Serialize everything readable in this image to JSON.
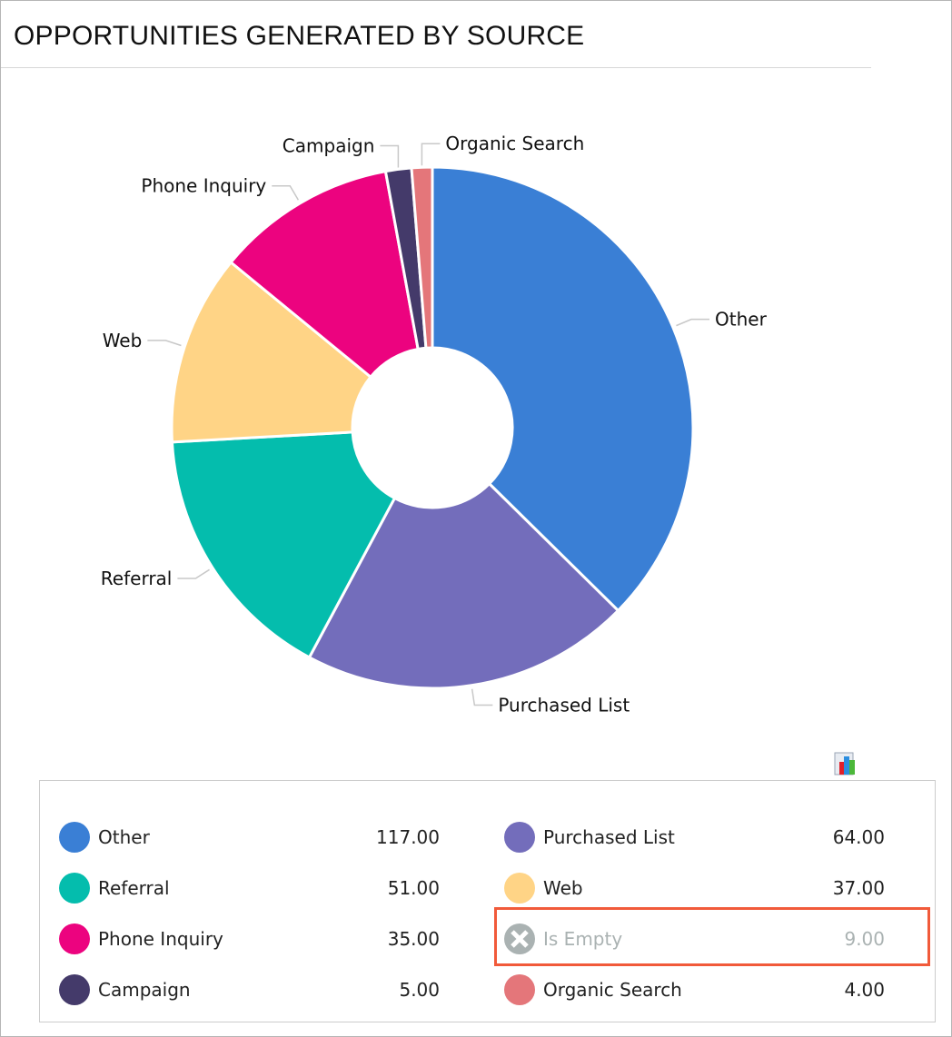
{
  "title": "OPPORTUNITIES GENERATED BY SOURCE",
  "chart_data": {
    "type": "pie",
    "variant": "donut",
    "title": "OPPORTUNITIES GENERATED BY SOURCE",
    "slices": [
      {
        "label": "Other",
        "value": 117,
        "color": "#3a7fd5"
      },
      {
        "label": "Purchased List",
        "value": 64,
        "color": "#736dbb"
      },
      {
        "label": "Referral",
        "value": 51,
        "color": "#04bdad"
      },
      {
        "label": "Web",
        "value": 37,
        "color": "#ffd486"
      },
      {
        "label": "Phone Inquiry",
        "value": 35,
        "color": "#ec037f"
      },
      {
        "label": "Campaign",
        "value": 5,
        "color": "#443a6a"
      },
      {
        "label": "Organic Search",
        "value": 4,
        "color": "#e4767a"
      }
    ],
    "excluded": [
      {
        "label": "Is Empty",
        "value": 9,
        "color": "#aab2b2"
      }
    ]
  },
  "legend": [
    {
      "label": "Other",
      "value": "117.00",
      "color": "#3a7fd5"
    },
    {
      "label": "Purchased List",
      "value": "64.00",
      "color": "#736dbb"
    },
    {
      "label": "Referral",
      "value": "51.00",
      "color": "#04bdad"
    },
    {
      "label": "Web",
      "value": "37.00",
      "color": "#ffd486"
    },
    {
      "label": "Phone Inquiry",
      "value": "35.00",
      "color": "#ec037f"
    },
    {
      "label": "Is Empty",
      "value": "9.00",
      "color": "#aab2b2",
      "disabled": true
    },
    {
      "label": "Campaign",
      "value": "5.00",
      "color": "#443a6a"
    },
    {
      "label": "Organic Search",
      "value": "4.00",
      "color": "#e4767a"
    }
  ],
  "highlight_color": "#f15a3a"
}
